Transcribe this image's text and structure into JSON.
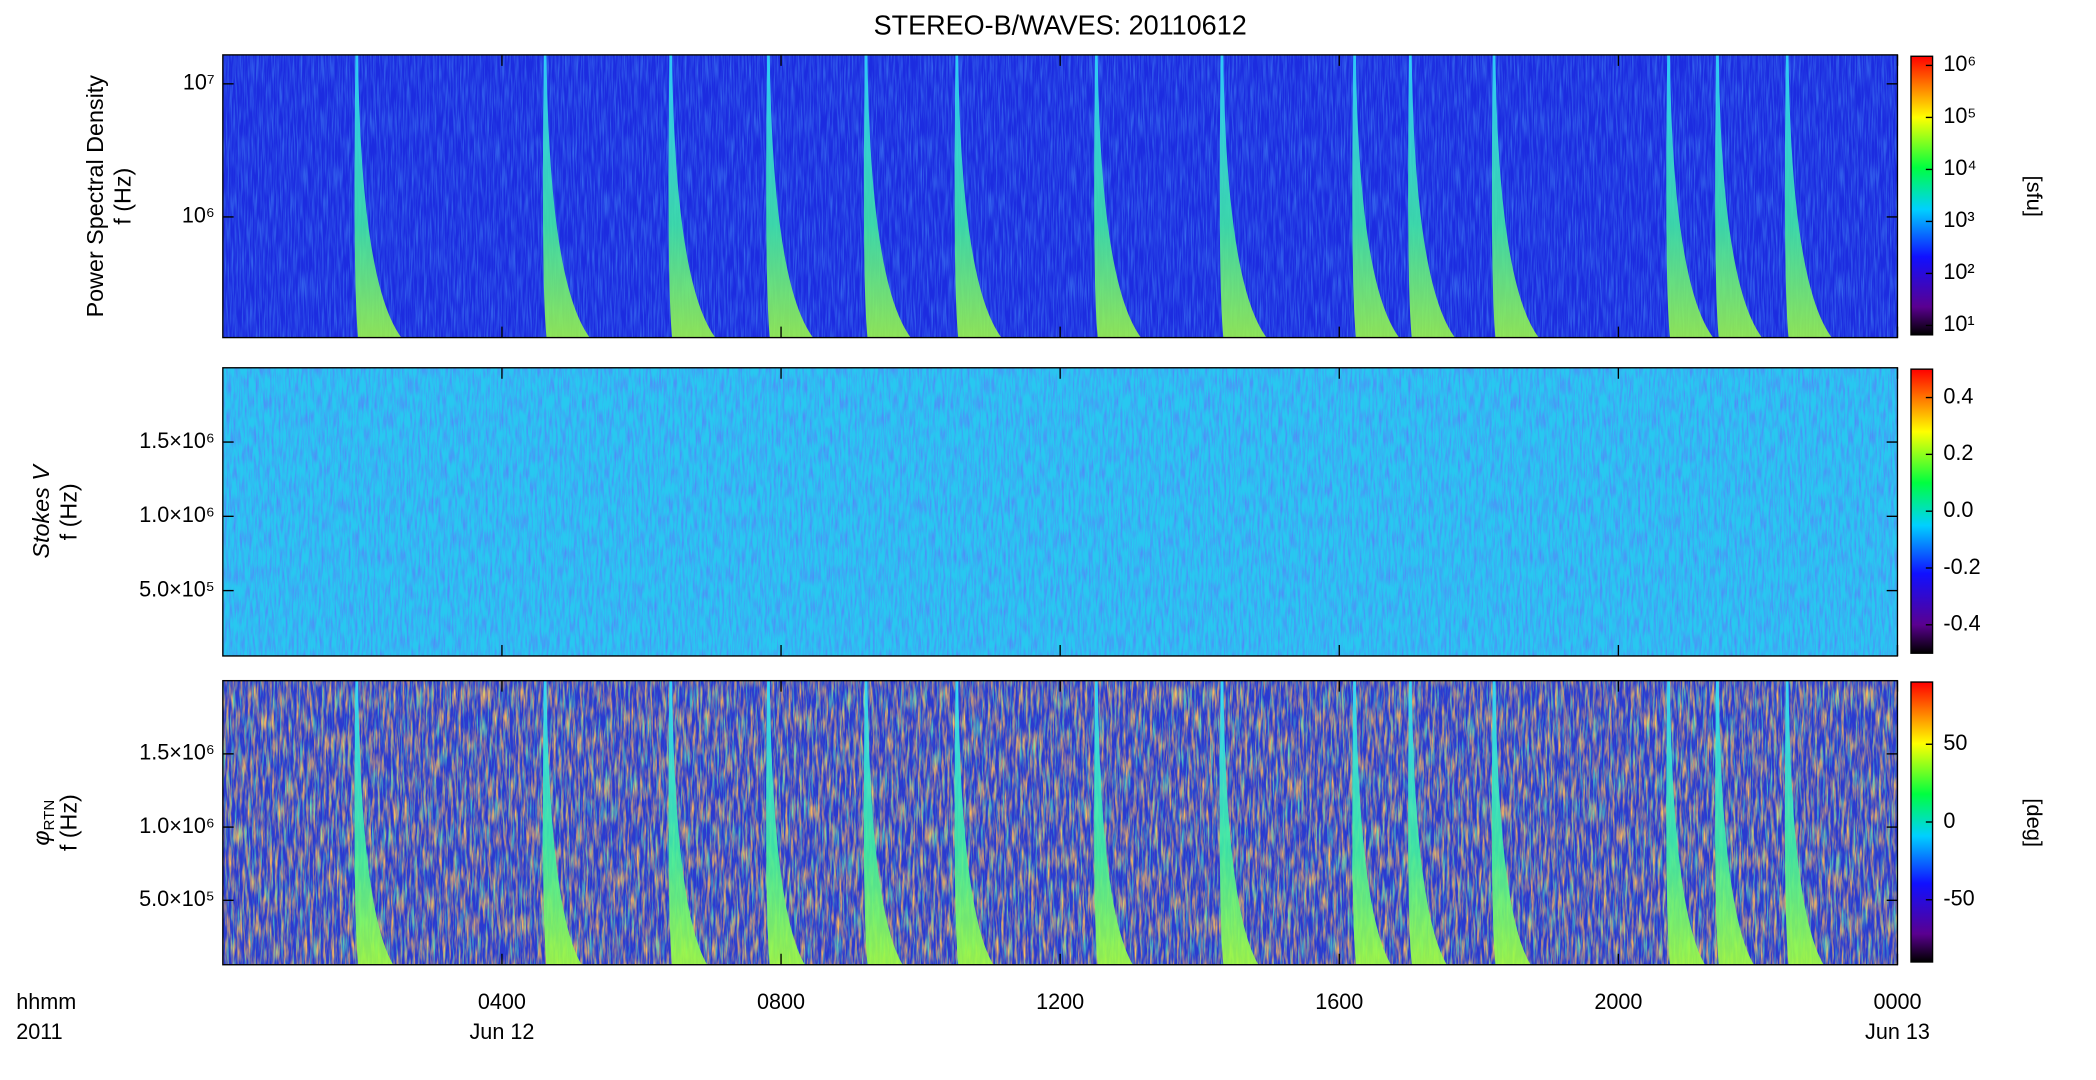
{
  "chart_data": [
    {
      "type": "spectrogram",
      "title": "STEREO-B/WAVES: 20110612",
      "ylabel": "Power Spectral Density",
      "ylabel2": "f (Hz)",
      "log_y": true,
      "ylim": [
        124000,
        16500000
      ],
      "yticks": [
        {
          "value": 1000000,
          "label": "10⁶"
        },
        {
          "value": 10000000,
          "label": "10⁷"
        }
      ],
      "clim": [
        6.6,
        1500000
      ],
      "clog": true,
      "clabel": "[sfu]",
      "cticks": [
        {
          "value": 10,
          "label": "10¹"
        },
        {
          "value": 100,
          "label": "10²"
        },
        {
          "value": 1000,
          "label": "10³"
        },
        {
          "value": 10000,
          "label": "10⁴"
        },
        {
          "value": 100000,
          "label": "10⁵"
        },
        {
          "value": 1000000,
          "label": "10⁶"
        }
      ],
      "bursts": [
        1.9,
        4.6,
        6.4,
        7.8,
        9.2,
        10.5,
        12.5,
        14.3,
        16.2,
        17.0,
        18.2,
        20.7,
        21.4,
        22.4
      ]
    },
    {
      "type": "spectrogram",
      "ylabel": "Stokes V",
      "ylabel2": "f (Hz)",
      "log_y": false,
      "ylim": [
        60000,
        2000000
      ],
      "yticks": [
        {
          "value": 500000,
          "label": "5.0×10⁵"
        },
        {
          "value": 1000000,
          "label": "1.0×10⁶"
        },
        {
          "value": 1500000,
          "label": "1.5×10⁶"
        }
      ],
      "clim": [
        -0.5,
        0.5
      ],
      "clog": false,
      "cticks": [
        -0.4,
        -0.2,
        {
          "value": 0,
          "label": "0.0"
        },
        0.2,
        0.4
      ]
    },
    {
      "type": "spectrogram",
      "ylabel": "φ",
      "ylabel_sub": "RTN",
      "ylabel2": "f (Hz)",
      "log_y": false,
      "ylim": [
        60000,
        2000000
      ],
      "yticks": [
        {
          "value": 500000,
          "label": "5.0×10⁵"
        },
        {
          "value": 1000000,
          "label": "1.0×10⁶"
        },
        {
          "value": 1500000,
          "label": "1.5×10⁶"
        }
      ],
      "clim": [
        -90,
        90
      ],
      "clog": false,
      "clabel": "[deg]",
      "cticks": [
        -50,
        0,
        50
      ],
      "xlim": [
        0,
        24
      ],
      "xlabel": "hhmm",
      "xlabel2": "2011",
      "xticks": [
        {
          "value": 4,
          "label": "0400"
        },
        {
          "value": 8,
          "label": "0800"
        },
        {
          "value": 12,
          "label": "1200"
        },
        {
          "value": 16,
          "label": "1600"
        },
        {
          "value": 20,
          "label": "2000"
        },
        {
          "value": 24,
          "label": "0000"
        }
      ],
      "date_labels": [
        {
          "value": 4,
          "label": "Jun 12"
        },
        {
          "value": 24,
          "label": "Jun 13"
        }
      ]
    }
  ]
}
